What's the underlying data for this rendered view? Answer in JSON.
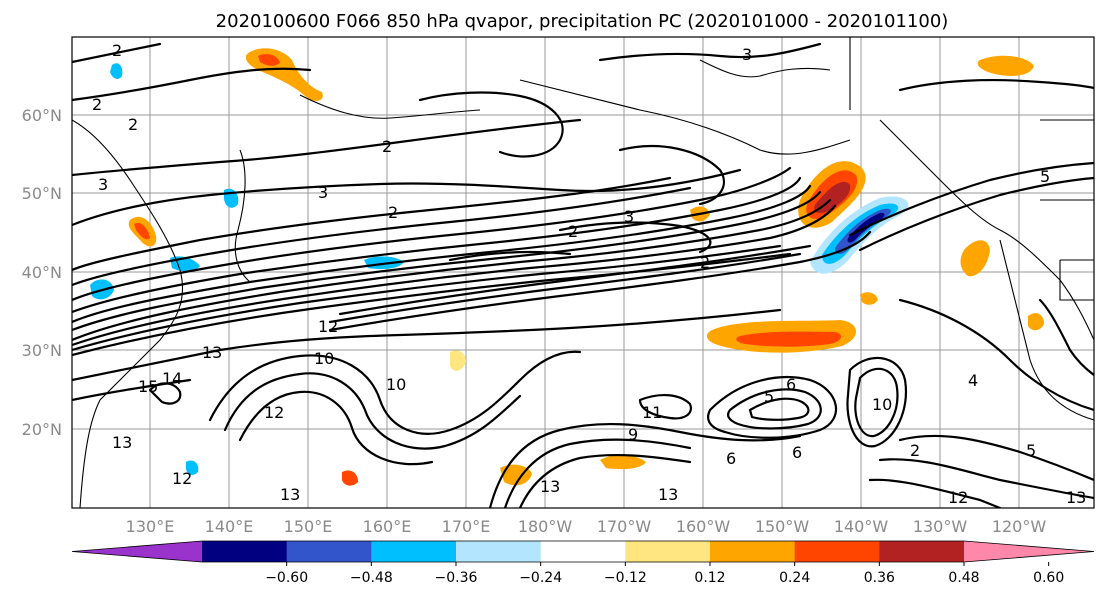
{
  "title": "2020100600 F066 850 hPa qvapor, precipitation PC (2020101000 - 2020101100)",
  "longitude_labels": [
    "130°E",
    "140°E",
    "150°E",
    "160°E",
    "170°E",
    "180°W",
    "170°W",
    "160°W",
    "150°W",
    "140°W",
    "130°W",
    "120°W"
  ],
  "latitude_labels": [
    "60°N",
    "50°N",
    "40°N",
    "30°N",
    "20°N"
  ],
  "colorbar": {
    "ticks": [
      "−0.60",
      "−0.48",
      "−0.36",
      "−0.24",
      "−0.12",
      "0.12",
      "0.24",
      "0.36",
      "0.48",
      "0.60"
    ],
    "colors": [
      "#9933cc",
      "#000080",
      "#3355cc",
      "#00bfff",
      "#b3e5ff",
      "#ffffff",
      "#ffe680",
      "#ffa500",
      "#ff4500",
      "#b22222",
      "#ff88aa"
    ]
  },
  "contour_labels": [
    "2",
    "2",
    "2",
    "2",
    "3",
    "3",
    "3",
    "2",
    "2",
    "2",
    "3",
    "12",
    "13",
    "14",
    "15",
    "10",
    "10",
    "12",
    "11",
    "9",
    "13",
    "13",
    "12",
    "13",
    "13",
    "5",
    "6",
    "6",
    "4",
    "10",
    "6",
    "2",
    "5",
    "5",
    "13",
    "12"
  ]
}
